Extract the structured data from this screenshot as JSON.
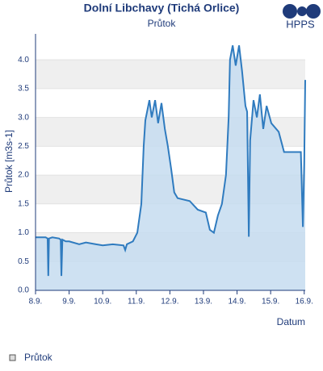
{
  "chart_data": {
    "type": "area",
    "title": "Dolní Libchavy (Tichá Orlice)",
    "subtitle": "Průtok",
    "logo": "HPPS",
    "xlabel": "Datum",
    "ylabel": "Průtok [m3s-1]",
    "xlim": [
      8,
      16.03
    ],
    "xticks": [
      {
        "value": 8,
        "label": "8.9."
      },
      {
        "value": 9,
        "label": "9.9."
      },
      {
        "value": 10,
        "label": "10.9."
      },
      {
        "value": 11,
        "label": "11.9."
      },
      {
        "value": 12,
        "label": "12.9."
      },
      {
        "value": 13,
        "label": "13.9."
      },
      {
        "value": 14,
        "label": "14.9."
      },
      {
        "value": 15,
        "label": "15.9."
      },
      {
        "value": 16,
        "label": "16.9."
      }
    ],
    "ylim": [
      0,
      4.45
    ],
    "yticks": [
      {
        "value": 0,
        "label": "0.0"
      },
      0.5,
      {
        "value": 1,
        "label": "1.0"
      },
      1.5,
      {
        "value": 2,
        "label": "2.0"
      },
      2.5,
      {
        "value": 3,
        "label": "3.0"
      },
      3.5,
      {
        "value": 4,
        "label": "4.0"
      }
    ],
    "grid": "alternating-bands",
    "legend": "bottom-left",
    "series": [
      {
        "name": "Průtok",
        "color": "#2f7bbf",
        "fill": "#c5dcf0",
        "x": [
          8,
          8.3,
          8.36,
          8.38,
          8.4,
          8.5,
          8.7,
          8.75,
          8.77,
          8.8,
          8.9,
          9.0,
          9.3,
          9.5,
          9.8,
          10.0,
          10.3,
          10.62,
          10.67,
          10.72,
          10.9,
          11.03,
          11.15,
          11.22,
          11.27,
          11.39,
          11.46,
          11.56,
          11.65,
          11.75,
          11.85,
          11.94,
          12.04,
          12.13,
          12.23,
          12.59,
          12.83,
          13.07,
          13.19,
          13.31,
          13.43,
          13.55,
          13.67,
          13.75,
          13.79,
          13.87,
          13.96,
          14.06,
          14.15,
          14.25,
          14.3,
          14.35,
          14.39,
          14.49,
          14.59,
          14.68,
          14.78,
          14.88,
          15.02,
          15.24,
          15.4,
          15.84,
          15.9,
          15.96,
          16.0,
          16.03
        ],
        "values": [
          0.92,
          0.92,
          0.9,
          0.25,
          0.9,
          0.92,
          0.9,
          0.88,
          0.25,
          0.88,
          0.85,
          0.85,
          0.8,
          0.83,
          0.8,
          0.78,
          0.8,
          0.78,
          0.7,
          0.8,
          0.85,
          1.0,
          1.5,
          2.5,
          2.95,
          3.3,
          3.0,
          3.3,
          2.9,
          3.25,
          2.8,
          2.5,
          2.1,
          1.7,
          1.6,
          1.55,
          1.4,
          1.35,
          1.05,
          1.0,
          1.3,
          1.5,
          2.0,
          3.0,
          4.0,
          4.25,
          3.9,
          4.25,
          3.8,
          3.2,
          3.1,
          0.93,
          2.6,
          3.3,
          3.0,
          3.4,
          2.8,
          3.2,
          2.9,
          2.75,
          2.4,
          2.4,
          2.4,
          1.1,
          2.2,
          3.65
        ]
      }
    ]
  }
}
